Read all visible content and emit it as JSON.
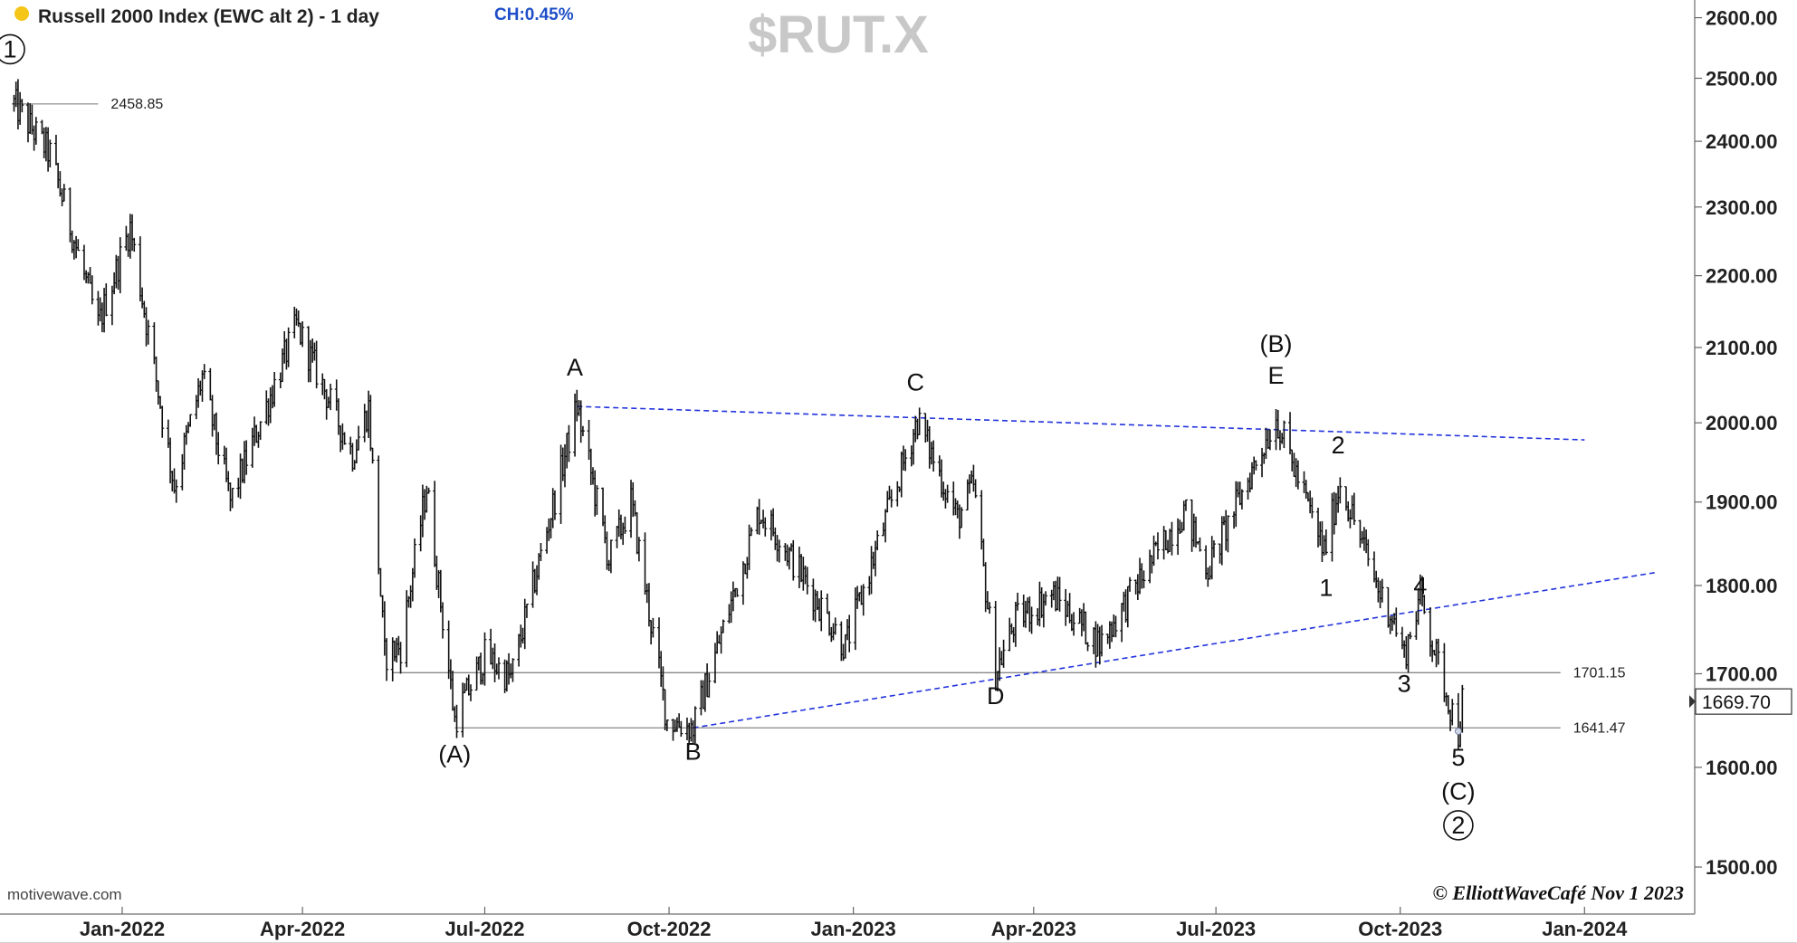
{
  "header": {
    "title": "Russell 2000 Index (EWC alt 2) - 1 day",
    "change": "CH:0.45%",
    "symbol": "$RUT.X",
    "dot_color": "#f5c518"
  },
  "watermark": "motivewave.com",
  "credit": "© ElliottWaveCafé Nov 1 2023",
  "chart_data": {
    "type": "ohlc",
    "scale": "log",
    "ylim": [
      1455,
      2630
    ],
    "xlim": [
      "2021-11-01",
      "2024-02-25"
    ],
    "y_ticks": [
      "1500.00",
      "1600.00",
      "1700.00",
      "1800.00",
      "1900.00",
      "2000.00",
      "2100.00",
      "2200.00",
      "2300.00",
      "2400.00",
      "2500.00",
      "2600.00"
    ],
    "x_ticks": [
      {
        "date": "2022-01-01",
        "label": "Jan-2022"
      },
      {
        "date": "2022-04-01",
        "label": "Apr-2022"
      },
      {
        "date": "2022-07-01",
        "label": "Jul-2022"
      },
      {
        "date": "2022-10-01",
        "label": "Oct-2022"
      },
      {
        "date": "2023-01-01",
        "label": "Jan-2023"
      },
      {
        "date": "2023-04-01",
        "label": "Apr-2023"
      },
      {
        "date": "2023-07-01",
        "label": "Jul-2023"
      },
      {
        "date": "2023-10-01",
        "label": "Oct-2023"
      },
      {
        "date": "2024-01-01",
        "label": "Jan-2024"
      }
    ],
    "pivots": [
      {
        "date": "2021-11-08",
        "price": 2458.85
      },
      {
        "date": "2021-11-26",
        "price": 2380
      },
      {
        "date": "2021-12-20",
        "price": 2130
      },
      {
        "date": "2022-01-05",
        "price": 2270
      },
      {
        "date": "2022-01-27",
        "price": 1920
      },
      {
        "date": "2022-02-10",
        "price": 2060
      },
      {
        "date": "2022-02-24",
        "price": 1900
      },
      {
        "date": "2022-03-29",
        "price": 2130
      },
      {
        "date": "2022-04-26",
        "price": 1960
      },
      {
        "date": "2022-05-04",
        "price": 2020
      },
      {
        "date": "2022-05-12",
        "price": 1720
      },
      {
        "date": "2022-05-20",
        "price": 1730
      },
      {
        "date": "2022-06-02",
        "price": 1920
      },
      {
        "date": "2022-06-16",
        "price": 1649.84
      },
      {
        "date": "2022-07-01",
        "price": 1720
      },
      {
        "date": "2022-07-14",
        "price": 1695
      },
      {
        "date": "2022-08-16",
        "price": 2021.35
      },
      {
        "date": "2022-09-01",
        "price": 1830
      },
      {
        "date": "2022-09-12",
        "price": 1900
      },
      {
        "date": "2022-09-30",
        "price": 1650
      },
      {
        "date": "2022-10-13",
        "price": 1641.47
      },
      {
        "date": "2022-11-15",
        "price": 1890
      },
      {
        "date": "2022-11-24",
        "price": 1860
      },
      {
        "date": "2022-12-28",
        "price": 1730
      },
      {
        "date": "2023-02-02",
        "price": 2004.4
      },
      {
        "date": "2023-02-22",
        "price": 1880
      },
      {
        "date": "2023-03-02",
        "price": 1920
      },
      {
        "date": "2023-03-13",
        "price": 1701.15
      },
      {
        "date": "2023-03-23",
        "price": 1760
      },
      {
        "date": "2023-04-10",
        "price": 1790
      },
      {
        "date": "2023-05-04",
        "price": 1733
      },
      {
        "date": "2023-06-15",
        "price": 1890
      },
      {
        "date": "2023-06-27",
        "price": 1820
      },
      {
        "date": "2023-07-31",
        "price": 2007.45
      },
      {
        "date": "2023-08-24",
        "price": 1840
      },
      {
        "date": "2023-09-01",
        "price": 1925
      },
      {
        "date": "2023-09-21",
        "price": 1790
      },
      {
        "date": "2023-09-27",
        "price": 1765
      },
      {
        "date": "2023-10-03",
        "price": 1720
      },
      {
        "date": "2023-10-11",
        "price": 1790
      },
      {
        "date": "2023-10-20",
        "price": 1710
      },
      {
        "date": "2023-10-30",
        "price": 1636
      },
      {
        "date": "2023-11-01",
        "price": 1669.7
      }
    ],
    "last_price": "1669.70",
    "levels": [
      {
        "value": 2458.85,
        "label": "2458.85",
        "from": "2021-11-08",
        "to": "2021-12-20",
        "color": "#999999"
      },
      {
        "value": 1701.15,
        "label": "1701.15",
        "from": "2022-05-16",
        "to": "2023-12-20",
        "color": "#888888"
      },
      {
        "value": 1641.47,
        "label": "1641.47",
        "from": "2022-06-16",
        "to": "2023-12-20",
        "color": "#888888"
      }
    ],
    "trendlines": [
      {
        "from": {
          "date": "2022-08-16",
          "price": 2021.35
        },
        "to": {
          "date": "2024-01-01",
          "price": 1978
        },
        "color": "#2233dd",
        "dash": true
      },
      {
        "from": {
          "date": "2022-10-13",
          "price": 1641.47
        },
        "to": {
          "date": "2024-02-05",
          "price": 1815
        },
        "color": "#2233dd",
        "dash": true
      }
    ],
    "wave_labels": [
      {
        "text": "1",
        "date": "2021-11-06",
        "price": 2534,
        "circled": true
      },
      {
        "text": "A",
        "date": "2022-08-15",
        "price": 2062
      },
      {
        "text": "(A)",
        "date": "2022-06-16",
        "price": 1605
      },
      {
        "text": "B",
        "date": "2022-10-13",
        "price": 1608
      },
      {
        "text": "C",
        "date": "2023-02-01",
        "price": 2042
      },
      {
        "text": "D",
        "date": "2023-03-13",
        "price": 1667
      },
      {
        "text": "(B)",
        "date": "2023-07-31",
        "price": 2094
      },
      {
        "text": "E",
        "date": "2023-07-31",
        "price": 2051
      },
      {
        "text": "2",
        "date": "2023-08-31",
        "price": 1961
      },
      {
        "text": "1",
        "date": "2023-08-25",
        "price": 1788
      },
      {
        "text": "4",
        "date": "2023-10-11",
        "price": 1790
      },
      {
        "text": "3",
        "date": "2023-10-03",
        "price": 1680
      },
      {
        "text": "5",
        "date": "2023-10-30",
        "price": 1602
      },
      {
        "text": "(C)",
        "date": "2023-10-30",
        "price": 1567
      },
      {
        "text": "2",
        "date": "2023-10-30",
        "price": 1533,
        "circled": true
      }
    ]
  },
  "colors": {
    "bar": "#111111",
    "axis": "#888888",
    "trend": "#2233dd"
  }
}
